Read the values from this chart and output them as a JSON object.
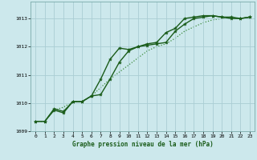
{
  "title": "Graphe pression niveau de la mer (hPa)",
  "background_color": "#cce8ec",
  "grid_color": "#aacdd4",
  "line_color_dark": "#1a5c1a",
  "line_color_light": "#3a8a3a",
  "xlim": [
    -0.5,
    23.5
  ],
  "ylim": [
    1009.0,
    1013.6
  ],
  "yticks": [
    1009,
    1010,
    1011,
    1012,
    1013
  ],
  "xticks": [
    0,
    1,
    2,
    3,
    4,
    5,
    6,
    7,
    8,
    9,
    10,
    11,
    12,
    13,
    14,
    15,
    16,
    17,
    18,
    19,
    20,
    21,
    22,
    23
  ],
  "series": [
    {
      "x": [
        0,
        1,
        2,
        3,
        4,
        5,
        6,
        7,
        8,
        9,
        10,
        11,
        12,
        13,
        14,
        15,
        16,
        17,
        18,
        19,
        20,
        21,
        22,
        23
      ],
      "y": [
        1009.35,
        1009.35,
        1009.75,
        1009.85,
        1010.05,
        1010.05,
        1010.25,
        1010.55,
        1010.85,
        1011.1,
        1011.35,
        1011.6,
        1011.85,
        1012.0,
        1012.1,
        1012.3,
        1012.55,
        1012.7,
        1012.85,
        1012.95,
        1013.0,
        1013.05,
        1013.0,
        1013.05
      ],
      "linestyle": "dotted",
      "marker": false,
      "color": "#3a8a3a",
      "linewidth": 0.9,
      "zorder": 1
    },
    {
      "x": [
        0,
        1,
        2,
        3,
        4,
        5,
        6,
        7,
        8,
        9,
        10,
        11,
        12,
        13,
        14,
        15,
        16,
        17,
        18,
        19,
        20,
        21,
        22,
        23
      ],
      "y": [
        1009.35,
        1009.35,
        1009.8,
        1009.7,
        1010.05,
        1010.05,
        1010.25,
        1010.85,
        1011.55,
        1011.95,
        1011.9,
        1012.0,
        1012.1,
        1012.15,
        1012.5,
        1012.65,
        1013.0,
        1013.05,
        1013.1,
        1013.1,
        1013.05,
        1013.05,
        1013.0,
        1013.05
      ],
      "linestyle": "solid",
      "marker": true,
      "color": "#1a5c1a",
      "linewidth": 1.0,
      "zorder": 3
    },
    {
      "x": [
        0,
        1,
        2,
        3,
        4,
        5,
        6,
        7,
        8,
        9,
        10,
        11,
        12,
        13,
        14,
        15,
        16,
        17,
        18,
        19,
        20,
        21,
        22,
        23
      ],
      "y": [
        1009.35,
        1009.35,
        1009.75,
        1009.65,
        1010.05,
        1010.05,
        1010.25,
        1010.3,
        1010.85,
        1011.45,
        1011.85,
        1012.0,
        1012.05,
        1012.1,
        1012.15,
        1012.55,
        1012.8,
        1013.0,
        1013.05,
        1013.1,
        1013.05,
        1013.0,
        1013.0,
        1013.05
      ],
      "linestyle": "solid",
      "marker": true,
      "color": "#1a5c1a",
      "linewidth": 1.0,
      "zorder": 2
    }
  ]
}
